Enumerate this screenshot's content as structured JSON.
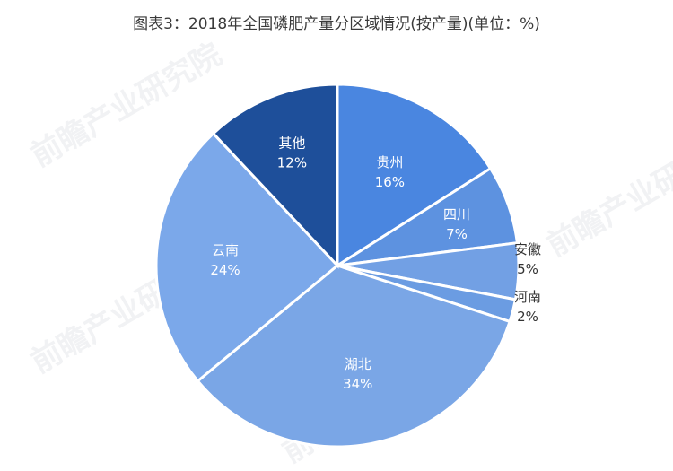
{
  "chart_data": {
    "type": "pie",
    "title": "图表3：2018年全国磷肥产量分区域情况(按产量)(单位：%)",
    "categories": [
      "贵州",
      "四川",
      "安徽",
      "河南",
      "湖北",
      "云南",
      "其他"
    ],
    "values": [
      16,
      7,
      5,
      2,
      34,
      24,
      12
    ],
    "value_labels": [
      "16%",
      "7%",
      "5%",
      "2%",
      "34%",
      "24%",
      "12%"
    ],
    "colors": [
      "#4a86e0",
      "#5d92e0",
      "#72a0e4",
      "#6b9ce2",
      "#7aa6e6",
      "#7ba8ea",
      "#1e4f9a"
    ],
    "start_angle_deg": 0,
    "direction": "clockwise",
    "label_placement": [
      "inside",
      "inside",
      "outside",
      "outside",
      "inside",
      "inside",
      "inside"
    ]
  },
  "watermarks": [
    "前瞻产业研究院",
    "前瞻产业研究院",
    "前瞻产业研究院",
    "前瞻产业研究院"
  ]
}
